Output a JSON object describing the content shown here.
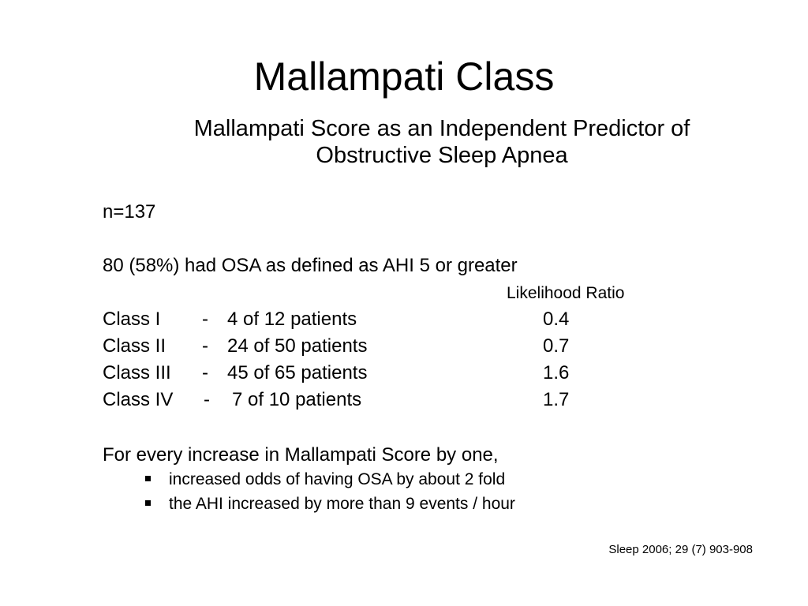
{
  "slide": {
    "title": "Mallampati Class",
    "subtitle_lines": [
      "Mallampati Score as an Independent Predictor of",
      "Obstructive Sleep Apnea"
    ],
    "sample_size": "n=137",
    "osa_statement": "80 (58%) had OSA as defined as AHI 5 or greater",
    "table": {
      "lr_header": "Likelihood Ratio",
      "rows": [
        {
          "class": "Class I",
          "dash": "-",
          "count": "4  of 12 patients",
          "lr": "0.4"
        },
        {
          "class": "Class II",
          "dash": "-",
          "count": "24 of 50 patients",
          "lr": "0.7"
        },
        {
          "class": "Class III",
          "dash": "-",
          "count": "45 of 65 patients",
          "lr": "1.6"
        },
        {
          "class": "Class IV",
          "dash": "-",
          "count": "7   of 10 patients",
          "lr": "1.7"
        }
      ]
    },
    "increase_statement": "For every increase in Mallampati Score by one,",
    "bullets": [
      "increased odds of having OSA by  about 2 fold",
      "the AHI increased by more than 9 events  / hour"
    ],
    "citation": "Sleep 2006; 29 (7) 903-908"
  }
}
